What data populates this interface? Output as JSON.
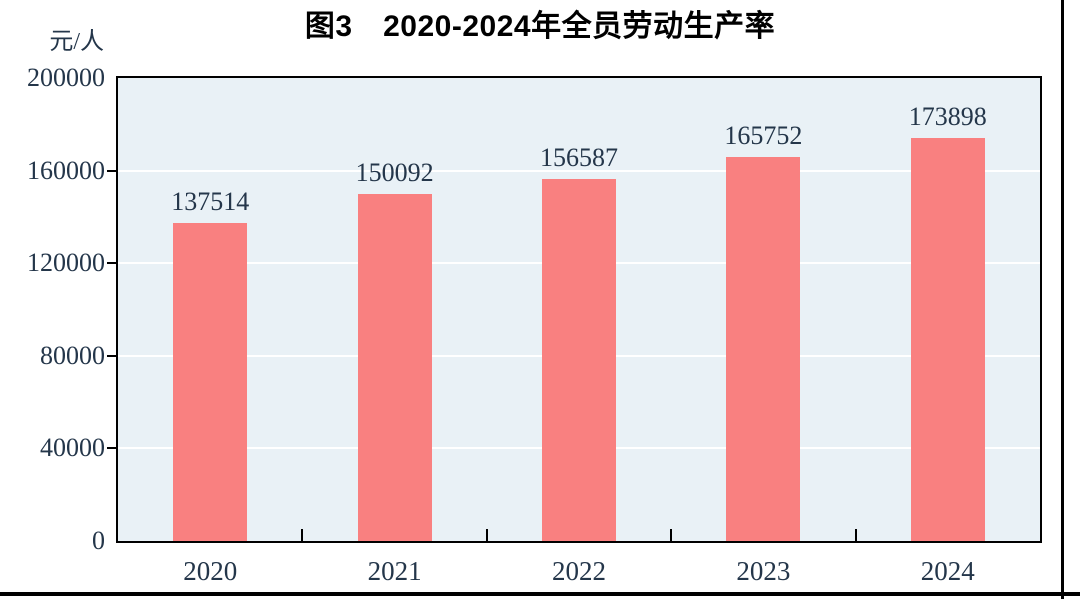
{
  "chart": {
    "title": "图3　2020-2024年全员劳动生产率",
    "unit": "元/人"
  },
  "chart_data": {
    "type": "bar",
    "title": "图3　2020-2024年全员劳动生产率",
    "categories": [
      "2020",
      "2021",
      "2022",
      "2023",
      "2024"
    ],
    "values": [
      137514,
      150092,
      156587,
      165752,
      173898
    ],
    "value_labels": [
      "137514",
      "150092",
      "156587",
      "165752",
      "173898"
    ],
    "xlabel": "",
    "ylabel": "元/人",
    "ylim": [
      0,
      200000
    ],
    "yticks": [
      0,
      40000,
      80000,
      120000,
      160000,
      200000
    ],
    "grid": true,
    "legend_position": "none",
    "colors": {
      "bar": "#f98080",
      "plot_bg": "#e9f1f6",
      "grid": "#ffffff",
      "label": "#24364a",
      "axis": "#000000"
    }
  }
}
